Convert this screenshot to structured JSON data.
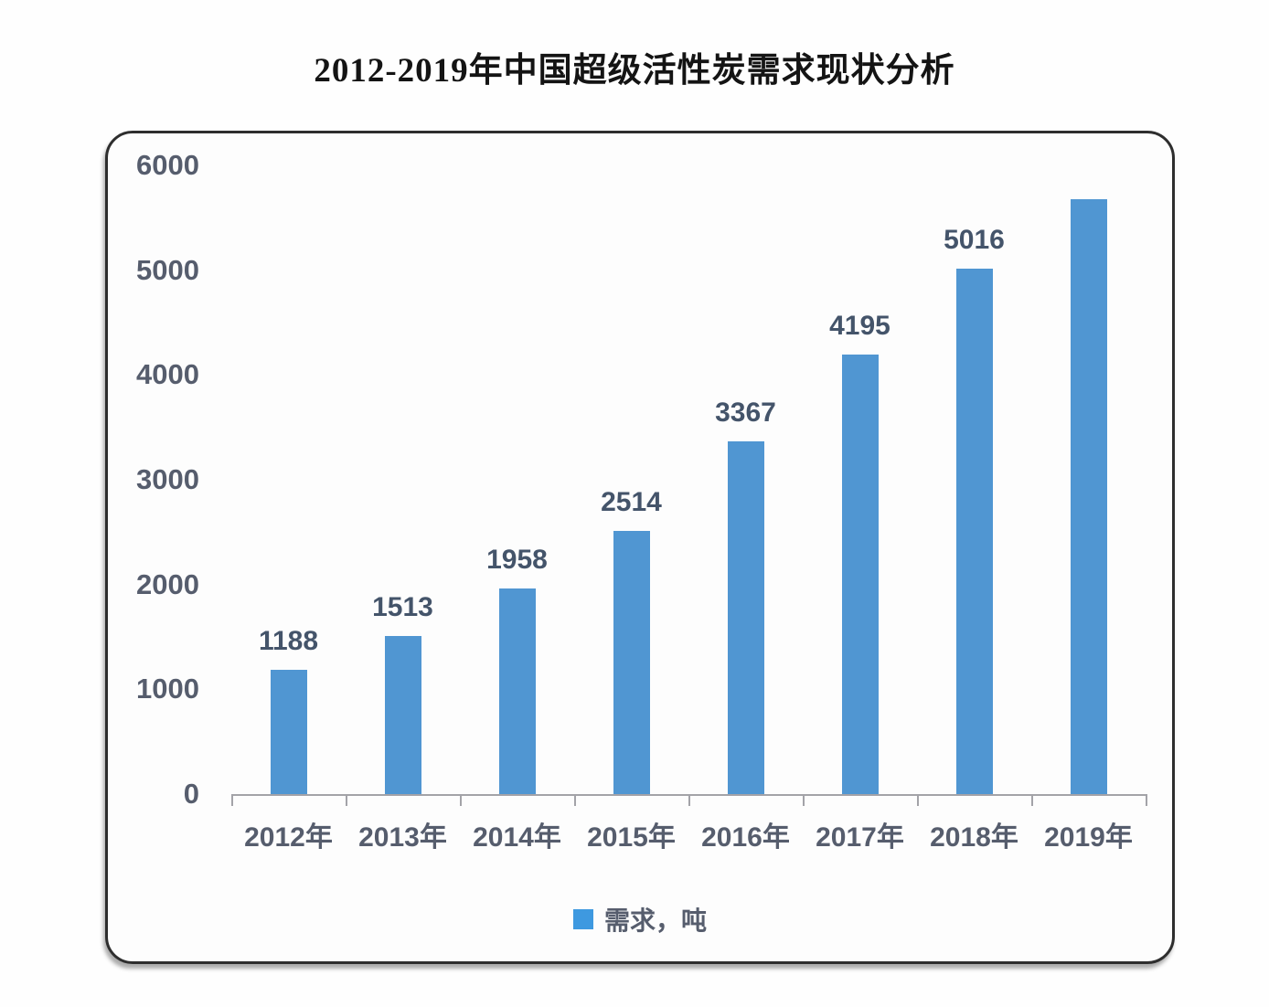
{
  "header": {
    "title": "2012-2019年中国超级活性炭需求现状分析"
  },
  "chart_data": {
    "type": "bar",
    "title": "2012-2019年中国超级活性炭需求现状分析",
    "categories": [
      "2012年",
      "2013年",
      "2014年",
      "2015年",
      "2016年",
      "2017年",
      "2018年",
      "2019年"
    ],
    "series": [
      {
        "name": "需求，吨",
        "values": [
          1188,
          1513,
          1958,
          2514,
          3367,
          4195,
          5016,
          5676
        ],
        "data_labels": [
          "1188",
          "1513",
          "1958",
          "2514",
          "3367",
          "4195",
          "5016",
          ""
        ]
      }
    ],
    "ylabel": "",
    "xlabel": "",
    "ylim": [
      0,
      6000
    ],
    "yticks": [
      0,
      1000,
      2000,
      3000,
      4000,
      5000,
      6000
    ],
    "grid": false,
    "legend_position": "bottom"
  },
  "legend": {
    "label": "需求，吨"
  },
  "colors": {
    "bar": "#5096d2",
    "legend_swatch": "#3e99e0",
    "axis_text": "#565d6d",
    "data_label_text": "#44546a",
    "title_text": "#141414",
    "axis_line": "#a3a3a8"
  }
}
